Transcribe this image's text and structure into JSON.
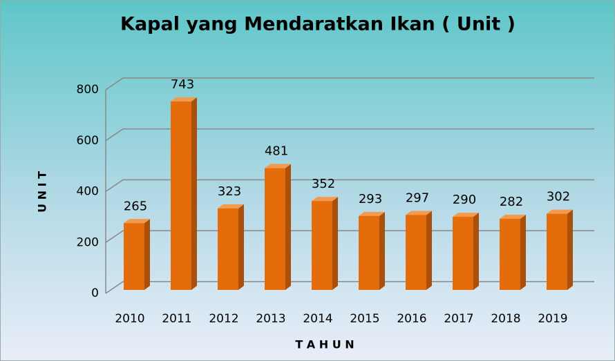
{
  "chart_data": {
    "type": "bar",
    "title": "Kapal yang Mendaratkan Ikan ( Unit )",
    "categories": [
      "2010",
      "2011",
      "2012",
      "2013",
      "2014",
      "2015",
      "2016",
      "2017",
      "2018",
      "2019"
    ],
    "values": [
      265,
      743,
      323,
      481,
      352,
      293,
      297,
      290,
      282,
      302
    ],
    "color": "#e46c0a",
    "ylim": [
      0,
      800
    ],
    "yticks": [
      0,
      200,
      400,
      600,
      800
    ],
    "grid": true,
    "x_label": "T A H U N",
    "y_label": "U N I T"
  }
}
